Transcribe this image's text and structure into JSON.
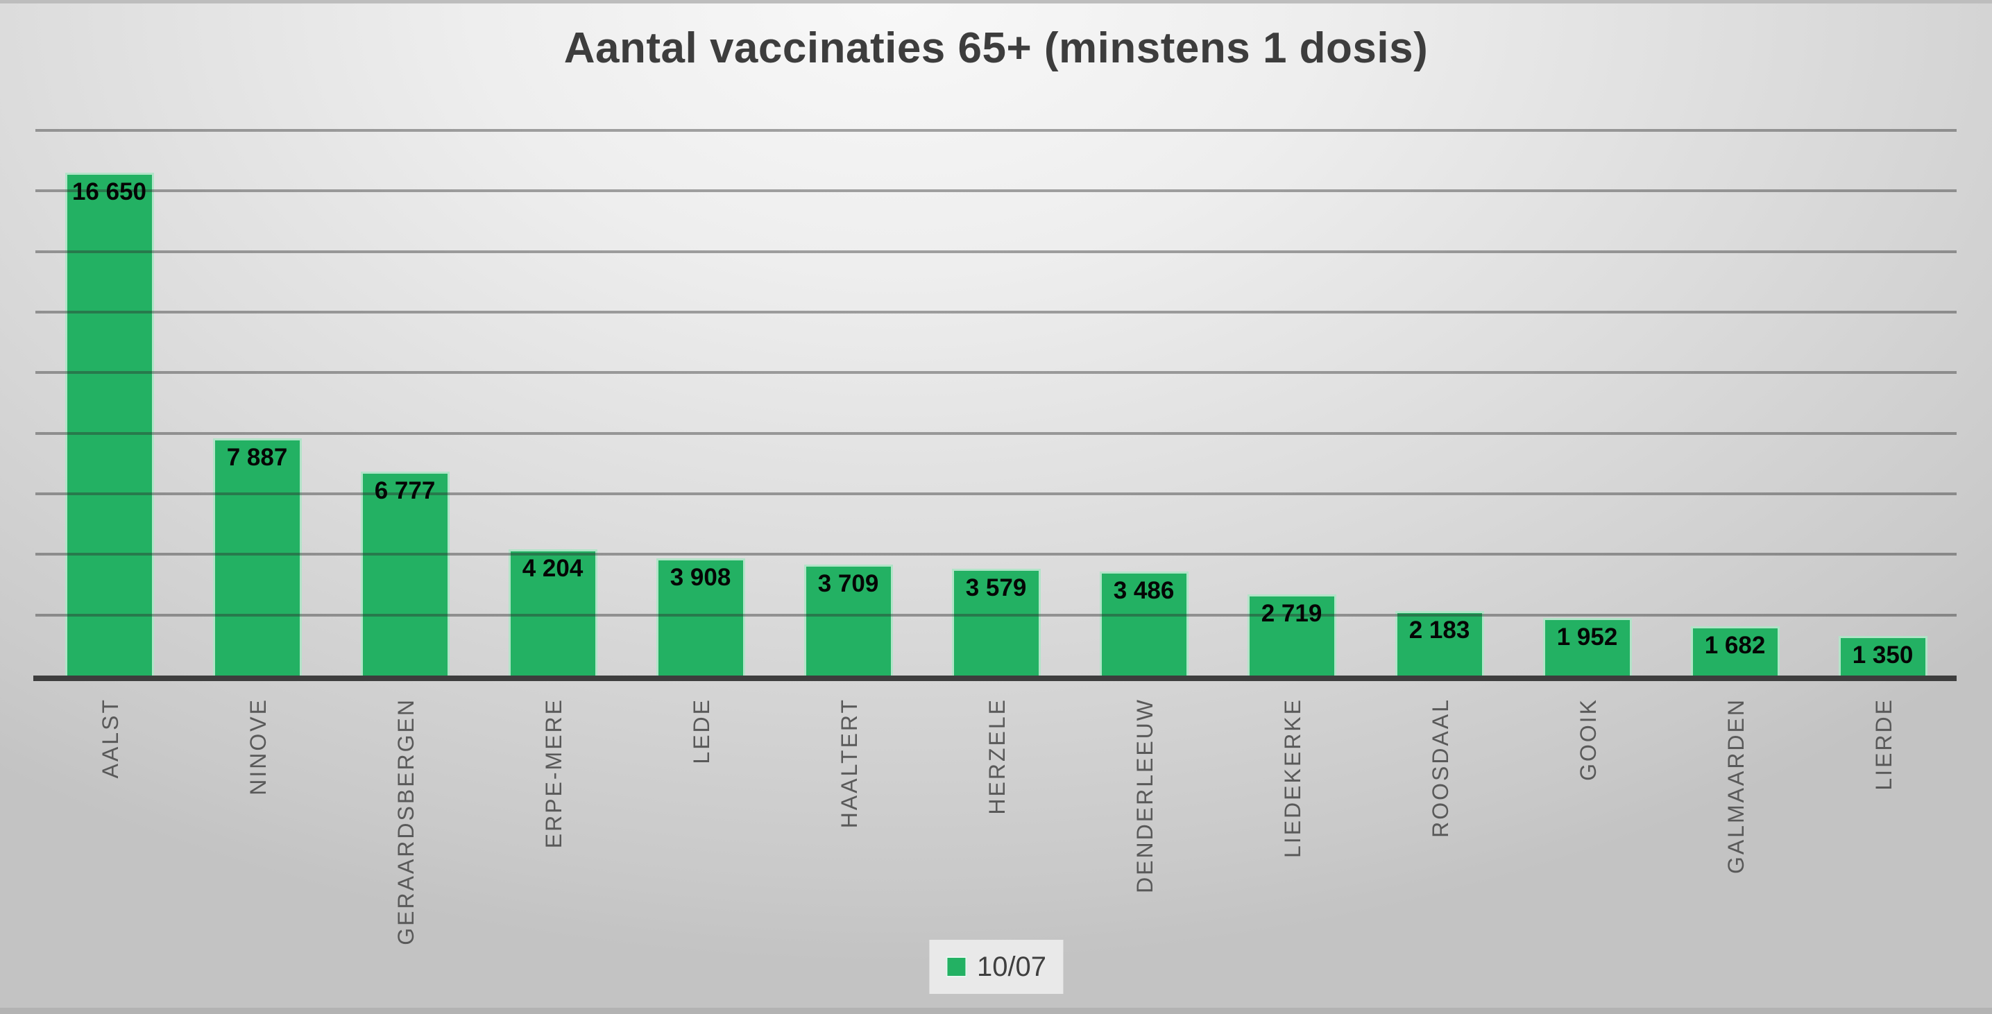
{
  "title": "Aantal vaccinaties 65+ (minstens 1 dosis)",
  "legend": {
    "label": "10/07"
  },
  "colors": {
    "bar_fill": "#23b163",
    "bar_border": "rgba(255,255,255,0.65)",
    "gridline_overlay": "rgba(45,45,45,0.42)",
    "axis_line": "#3d3d3d",
    "title_text": "#3d3d3d",
    "category_text": "#595959",
    "value_text": "#050505",
    "legend_background": "#e9e9e9"
  },
  "chart_data": {
    "type": "bar",
    "title": "Aantal vaccinaties 65+ (minstens 1 dosis)",
    "categories": [
      "AALST",
      "NINOVE",
      "GERAARDSBERGEN",
      "ERPE-MERE",
      "LEDE",
      "HAALTERT",
      "HERZELE",
      "DENDERLEEUW",
      "LIEDEKERKE",
      "ROOSDAAL",
      "GOOIK",
      "GALMAARDEN",
      "LIERDE"
    ],
    "series": [
      {
        "name": "10/07",
        "values": [
          16650,
          7887,
          6777,
          4204,
          3908,
          3709,
          3579,
          3486,
          2719,
          2183,
          1952,
          1682,
          1350
        ],
        "labels": [
          "16 650",
          "7 887",
          "6 777",
          "4 204",
          "3 908",
          "3 709",
          "3 579",
          "3 486",
          "2 719",
          "2 183",
          "1 952",
          "1 682",
          "1 350"
        ]
      }
    ],
    "xlabel": "",
    "ylabel": "",
    "ylim": [
      0,
      18000
    ],
    "grid_step": 2000,
    "grid": true,
    "y_tick_labels_visible": false,
    "legend_position": "bottom-center",
    "bar_color": "#23b163"
  }
}
